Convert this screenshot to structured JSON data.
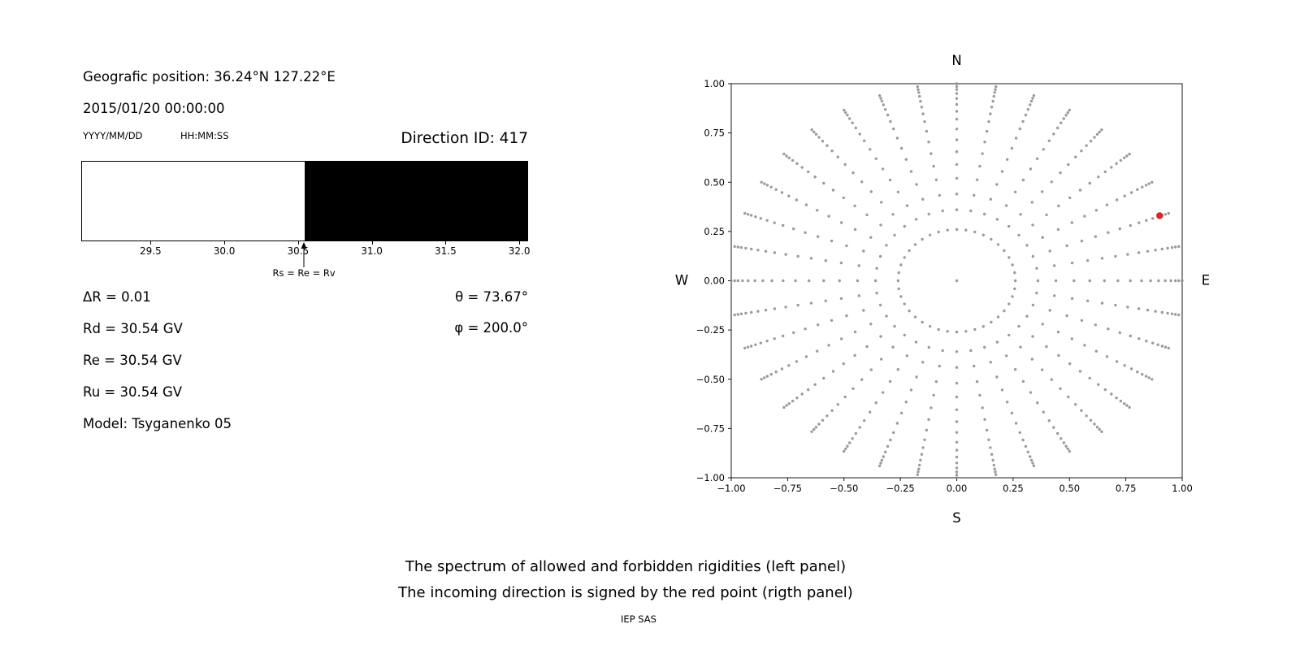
{
  "figure": {
    "background": "#ffffff"
  },
  "left": {
    "geographic_position": "Geografic position: 36.24°N 127.22°E",
    "datetime": "2015/01/20 00:00:00",
    "date_format_label": "YYYY/MM/DD",
    "time_format_label": "HH:MM:SS",
    "direction_id": "Direction ID: 417",
    "params": {
      "delta_r": "ΔR = 0.01",
      "rd": "Rd = 30.54 GV",
      "re": "Re = 30.54 GV",
      "ru": "Ru = 30.54 GV",
      "model": "Model: Tsyganenko 05",
      "theta": "θ = 73.67°",
      "phi": "φ = 200.0°"
    }
  },
  "captions": {
    "line1": "The spectrum of allowed and forbidden rigidities (left panel)",
    "line2": "The incoming direction is signed by the red point (rigth panel)",
    "credit": "IEP SAS"
  },
  "chart_data": [
    {
      "type": "area",
      "panel": "left",
      "description": "Rigidity spectrum: white region = allowed rigidities, black region = forbidden rigidities",
      "x_range": [
        29.03,
        32.06
      ],
      "xlabel_unit": "GV",
      "xticks": [
        {
          "value": 29.5,
          "label": "29.5"
        },
        {
          "value": 30.0,
          "label": "30.0"
        },
        {
          "value": 30.5,
          "label": "30.5"
        },
        {
          "value": 31.0,
          "label": "31.0"
        },
        {
          "value": 31.5,
          "label": "31.5"
        },
        {
          "value": 32.0,
          "label": "32.0"
        }
      ],
      "boundary_rigidity_gv": 30.54,
      "regions": [
        {
          "label": "allowed",
          "from": 29.03,
          "to": 30.54,
          "color": "#ffffff"
        },
        {
          "label": "forbidden",
          "from": 30.54,
          "to": 32.06,
          "color": "#000000"
        }
      ],
      "annotation": {
        "text": "Rs = Re = Rv",
        "x": 30.54
      }
    },
    {
      "type": "scatter",
      "panel": "right",
      "description": "Grid of incoming directions (gray dots in radial spokes with inner ring); the red point marks the incoming direction",
      "xlim": [
        -1.0,
        1.0
      ],
      "ylim": [
        -1.0,
        1.0
      ],
      "xticks": [
        {
          "value": -1.0,
          "label": "−1.00"
        },
        {
          "value": -0.75,
          "label": "−0.75"
        },
        {
          "value": -0.5,
          "label": "−0.50"
        },
        {
          "value": -0.25,
          "label": "−0.25"
        },
        {
          "value": 0.0,
          "label": "0.00"
        },
        {
          "value": 0.25,
          "label": "0.25"
        },
        {
          "value": 0.5,
          "label": "0.50"
        },
        {
          "value": 0.75,
          "label": "0.75"
        },
        {
          "value": 1.0,
          "label": "1.00"
        }
      ],
      "yticks": [
        {
          "value": -1.0,
          "label": "−1.00"
        },
        {
          "value": -0.75,
          "label": "−0.75"
        },
        {
          "value": -0.5,
          "label": "−0.50"
        },
        {
          "value": -0.25,
          "label": "−0.25"
        },
        {
          "value": 0.0,
          "label": "0.00"
        },
        {
          "value": 0.25,
          "label": "0.25"
        },
        {
          "value": 0.5,
          "label": "0.50"
        },
        {
          "value": 0.75,
          "label": "0.75"
        },
        {
          "value": 1.0,
          "label": "1.00"
        }
      ],
      "compass": {
        "top": "N",
        "bottom": "S",
        "left": "W",
        "right": "E"
      },
      "dot_color": "#8a8a8a",
      "pattern": {
        "spoke_count": 36,
        "spoke_radii": [
          0.36,
          0.44,
          0.52,
          0.59,
          0.655,
          0.715,
          0.77,
          0.82,
          0.86,
          0.895,
          0.925,
          0.95,
          0.97,
          0.985,
          1.0
        ],
        "ring_radius": 0.26,
        "ring_dot_count": 40,
        "center_dot": true
      },
      "red_point": {
        "x": 0.9,
        "y": 0.33,
        "color": "#d62728"
      }
    }
  ]
}
